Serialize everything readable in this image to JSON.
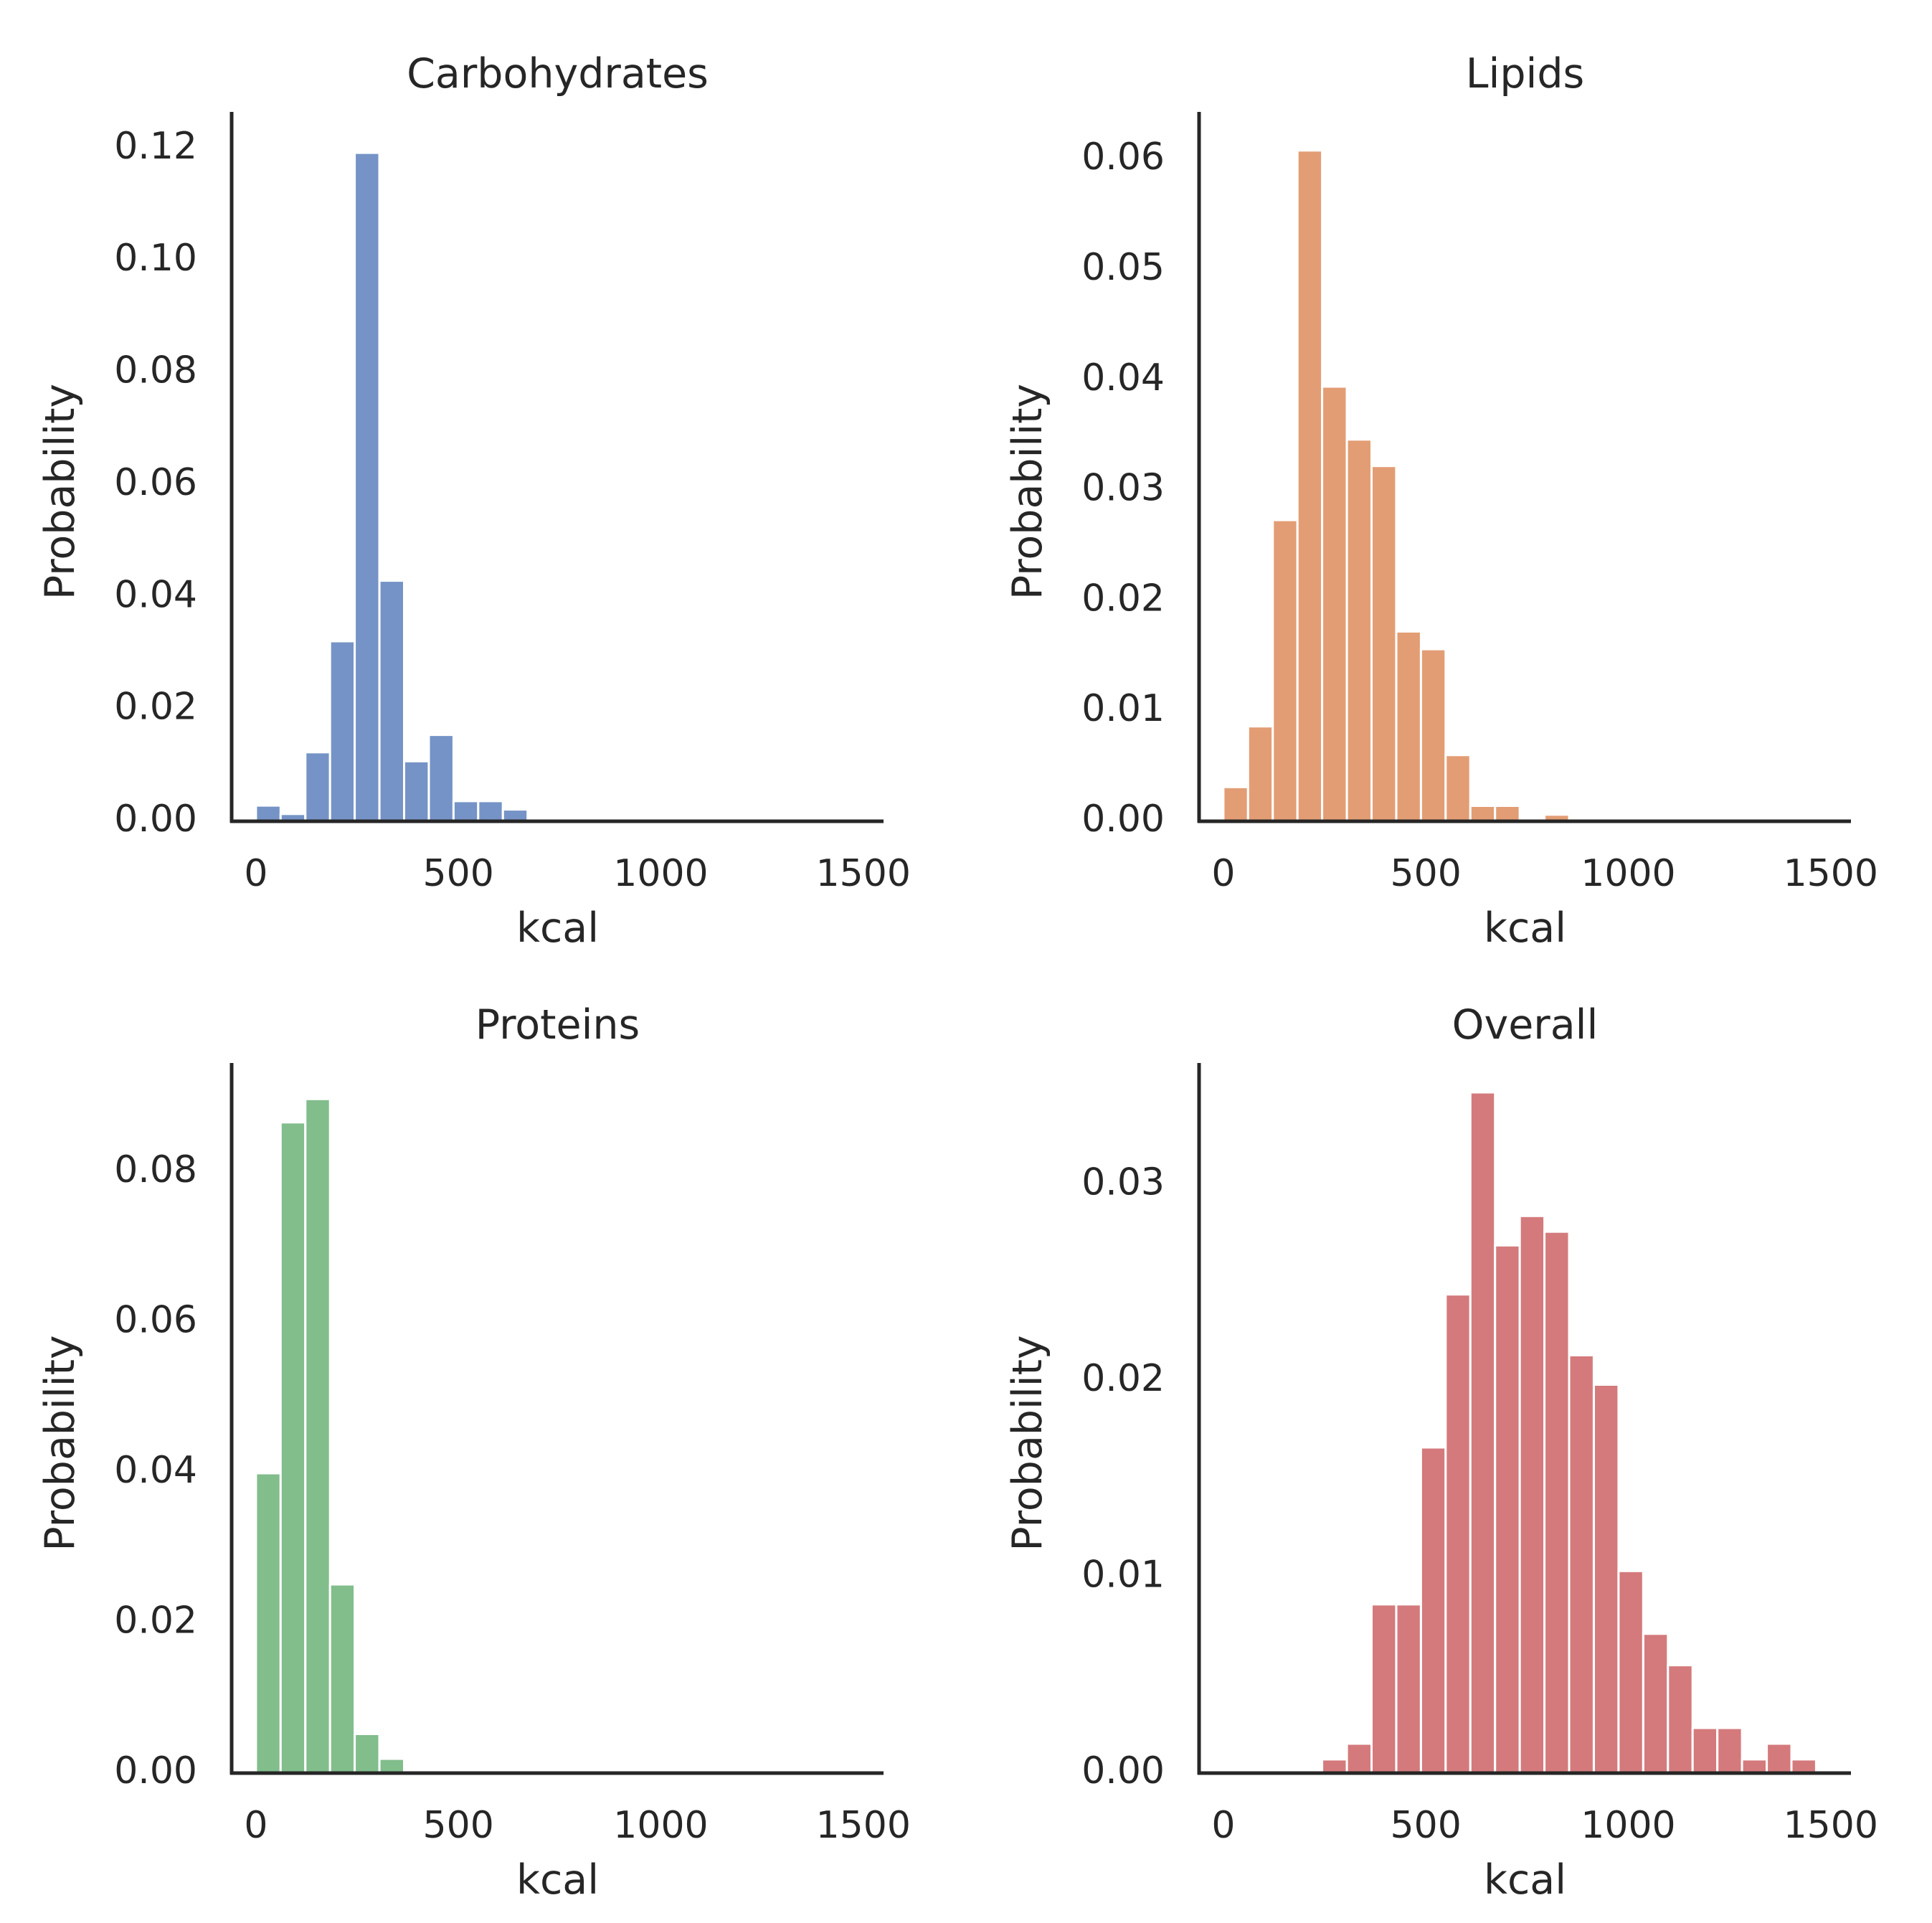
{
  "figure": {
    "panel_order": [
      "Carbohydrates",
      "Lipids",
      "Proteins",
      "Overall"
    ]
  },
  "chart_data": [
    {
      "type": "bar",
      "title": "Carbohydrates",
      "xlabel": "kcal",
      "ylabel": "Probability",
      "color": "#7593c6",
      "xlim": [
        -60,
        1550
      ],
      "ylim": [
        0,
        0.1265
      ],
      "xticks": [
        0,
        500,
        1000,
        1500
      ],
      "xtick_labels": [
        "0",
        "500",
        "1000",
        "1500"
      ],
      "yticks": [
        0,
        0.02,
        0.04,
        0.06,
        0.08,
        0.1,
        0.12
      ],
      "ytick_labels": [
        "0.00",
        "0.02",
        "0.04",
        "0.06",
        "0.08",
        "0.10",
        "0.12"
      ],
      "bin_width": 61,
      "bins": [
        {
          "x": 0,
          "value": 0.0028
        },
        {
          "x": 61,
          "value": 0.0013
        },
        {
          "x": 122,
          "value": 0.0123
        },
        {
          "x": 183,
          "value": 0.0321
        },
        {
          "x": 244,
          "value": 0.1192
        },
        {
          "x": 305,
          "value": 0.0429
        },
        {
          "x": 366,
          "value": 0.0107
        },
        {
          "x": 427,
          "value": 0.0154
        },
        {
          "x": 488,
          "value": 0.0036
        },
        {
          "x": 549,
          "value": 0.0036
        },
        {
          "x": 610,
          "value": 0.0021
        }
      ]
    },
    {
      "type": "bar",
      "title": "Lipids",
      "xlabel": "kcal",
      "ylabel": "Probability",
      "color": "#e39d74",
      "xlim": [
        -60,
        1550
      ],
      "ylim": [
        0,
        0.0643
      ],
      "xticks": [
        0,
        500,
        1000,
        1500
      ],
      "xtick_labels": [
        "0",
        "500",
        "1000",
        "1500"
      ],
      "yticks": [
        0,
        0.01,
        0.02,
        0.03,
        0.04,
        0.05,
        0.06
      ],
      "ytick_labels": [
        "0.00",
        "0.01",
        "0.02",
        "0.03",
        "0.04",
        "0.05",
        "0.06"
      ],
      "bin_width": 61,
      "bins": [
        {
          "x": 0,
          "value": 0.0031
        },
        {
          "x": 61,
          "value": 0.0086
        },
        {
          "x": 122,
          "value": 0.0273
        },
        {
          "x": 183,
          "value": 0.0608
        },
        {
          "x": 244,
          "value": 0.0394
        },
        {
          "x": 305,
          "value": 0.0346
        },
        {
          "x": 366,
          "value": 0.0322
        },
        {
          "x": 427,
          "value": 0.0172
        },
        {
          "x": 488,
          "value": 0.0156
        },
        {
          "x": 549,
          "value": 0.006
        },
        {
          "x": 610,
          "value": 0.0014
        },
        {
          "x": 671,
          "value": 0.0014
        },
        {
          "x": 732,
          "value": 0
        },
        {
          "x": 793,
          "value": 0.0006
        }
      ]
    },
    {
      "type": "bar",
      "title": "Proteins",
      "xlabel": "kcal",
      "ylabel": "Probability",
      "color": "#82bd8c",
      "xlim": [
        -60,
        1550
      ],
      "ylim": [
        0,
        0.0945
      ],
      "xticks": [
        0,
        500,
        1000,
        1500
      ],
      "xtick_labels": [
        "0",
        "500",
        "1000",
        "1500"
      ],
      "yticks": [
        0,
        0.02,
        0.04,
        0.06,
        0.08
      ],
      "ytick_labels": [
        "0.00",
        "0.02",
        "0.04",
        "0.06",
        "0.08"
      ],
      "bin_width": 61,
      "bins": [
        {
          "x": 0,
          "value": 0.0399
        },
        {
          "x": 61,
          "value": 0.0866
        },
        {
          "x": 122,
          "value": 0.0897
        },
        {
          "x": 183,
          "value": 0.0251
        },
        {
          "x": 244,
          "value": 0.0052
        },
        {
          "x": 305,
          "value": 0.0019
        }
      ]
    },
    {
      "type": "bar",
      "title": "Overall",
      "xlabel": "kcal",
      "ylabel": "Probability",
      "color": "#d47a7c",
      "xlim": [
        -60,
        1550
      ],
      "ylim": [
        0,
        0.0362
      ],
      "xticks": [
        0,
        500,
        1000,
        1500
      ],
      "xtick_labels": [
        "0",
        "500",
        "1000",
        "1500"
      ],
      "yticks": [
        0,
        0.01,
        0.02,
        0.03
      ],
      "ytick_labels": [
        "0.00",
        "0.01",
        "0.02",
        "0.03"
      ],
      "bin_width": 61,
      "bins": [
        {
          "x": 244,
          "value": 0.0007
        },
        {
          "x": 305,
          "value": 0.0015
        },
        {
          "x": 366,
          "value": 0.0086
        },
        {
          "x": 427,
          "value": 0.0086
        },
        {
          "x": 488,
          "value": 0.0166
        },
        {
          "x": 549,
          "value": 0.0244
        },
        {
          "x": 610,
          "value": 0.0347
        },
        {
          "x": 671,
          "value": 0.0269
        },
        {
          "x": 732,
          "value": 0.0284
        },
        {
          "x": 793,
          "value": 0.0276
        },
        {
          "x": 854,
          "value": 0.0213
        },
        {
          "x": 915,
          "value": 0.0198
        },
        {
          "x": 976,
          "value": 0.0103
        },
        {
          "x": 1037,
          "value": 0.0071
        },
        {
          "x": 1098,
          "value": 0.0055
        },
        {
          "x": 1159,
          "value": 0.0023
        },
        {
          "x": 1220,
          "value": 0.0023
        },
        {
          "x": 1281,
          "value": 0.0007
        },
        {
          "x": 1342,
          "value": 0.0015
        },
        {
          "x": 1403,
          "value": 0.0007
        }
      ]
    }
  ]
}
